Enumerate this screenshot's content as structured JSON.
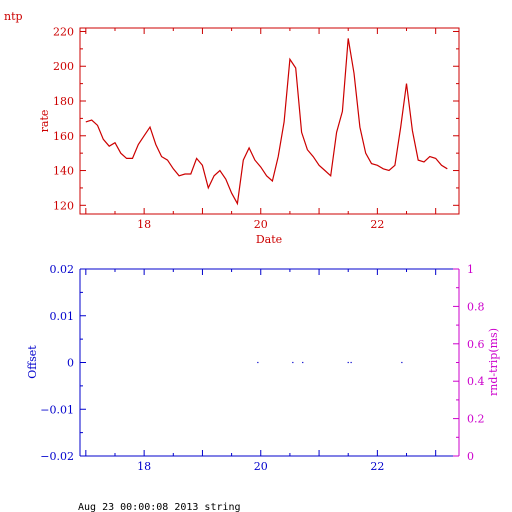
{
  "page_label": "ntp",
  "footer": "Aug 23 00:00:08 2013 string",
  "colors": {
    "top": "#cc0000",
    "bottom_left": "#0000cc",
    "bottom_right": "#cc00cc"
  },
  "chart_data": [
    {
      "type": "line",
      "xlabel": "Date",
      "ylabel": "rate",
      "xlim": [
        16.9,
        23.4
      ],
      "ylim": [
        115,
        222
      ],
      "x_ticks": [
        18,
        20,
        22
      ],
      "y_ticks": [
        120,
        140,
        160,
        180,
        200,
        220
      ],
      "x_tick_labels": [
        "18",
        "20",
        "22"
      ],
      "y_tick_labels": [
        "120",
        "140",
        "160",
        "180",
        "200",
        "220"
      ],
      "series": [
        {
          "x": [
            17.0,
            17.1,
            17.2,
            17.3,
            17.4,
            17.5,
            17.6,
            17.7,
            17.8,
            17.9,
            18.0,
            18.1,
            18.2,
            18.3,
            18.4,
            18.5,
            18.6,
            18.7,
            18.8,
            18.9,
            19.0,
            19.1,
            19.2,
            19.3,
            19.4,
            19.5,
            19.6,
            19.7,
            19.8,
            19.9,
            20.0,
            20.1,
            20.2,
            20.3,
            20.4,
            20.5,
            20.6,
            20.7,
            20.8,
            20.9,
            21.0,
            21.1,
            21.2,
            21.3,
            21.4,
            21.5,
            21.6,
            21.7,
            21.8,
            21.9,
            22.0,
            22.1,
            22.2,
            22.3,
            22.4,
            22.5,
            22.6,
            22.7,
            22.8,
            22.9,
            23.0,
            23.1,
            23.2
          ],
          "y": [
            168,
            169,
            166,
            158,
            154,
            156,
            150,
            147,
            147,
            155,
            160,
            165,
            155,
            148,
            146,
            141,
            137,
            138,
            138,
            147,
            143,
            130,
            137,
            140,
            135,
            127,
            121,
            146,
            153,
            146,
            142,
            137,
            134,
            148,
            168,
            204,
            199,
            162,
            152,
            148,
            143,
            140,
            137,
            162,
            174,
            216,
            196,
            165,
            150,
            144,
            143,
            141,
            140,
            143,
            165,
            190,
            163,
            146,
            145,
            148,
            147,
            143,
            141
          ]
        }
      ]
    },
    {
      "type": "scatter",
      "ylabel": "Offset",
      "y2label": "rnd-trip(ms)",
      "xlim": [
        16.9,
        23.4
      ],
      "ylim": [
        -0.02,
        0.02
      ],
      "y2lim": [
        0,
        1
      ],
      "x_ticks": [
        18,
        20,
        22
      ],
      "y_ticks": [
        -0.02,
        -0.01,
        0,
        0.01,
        0.02
      ],
      "y2_ticks": [
        0,
        0.2,
        0.4,
        0.6,
        0.8,
        1
      ],
      "x_tick_labels": [
        "18",
        "20",
        "22"
      ],
      "y_tick_labels": [
        "−0.02",
        "−0.01",
        "0",
        "0.01",
        "0.02"
      ],
      "y2_tick_labels": [
        "0",
        "0.2",
        "0.4",
        "0.6",
        "0.8",
        "1"
      ],
      "series": [
        {
          "x": [
            19.95,
            20.55,
            20.72,
            21.5,
            21.55,
            22.42
          ],
          "y": [
            0,
            0,
            0,
            0,
            0,
            0
          ]
        }
      ]
    }
  ]
}
